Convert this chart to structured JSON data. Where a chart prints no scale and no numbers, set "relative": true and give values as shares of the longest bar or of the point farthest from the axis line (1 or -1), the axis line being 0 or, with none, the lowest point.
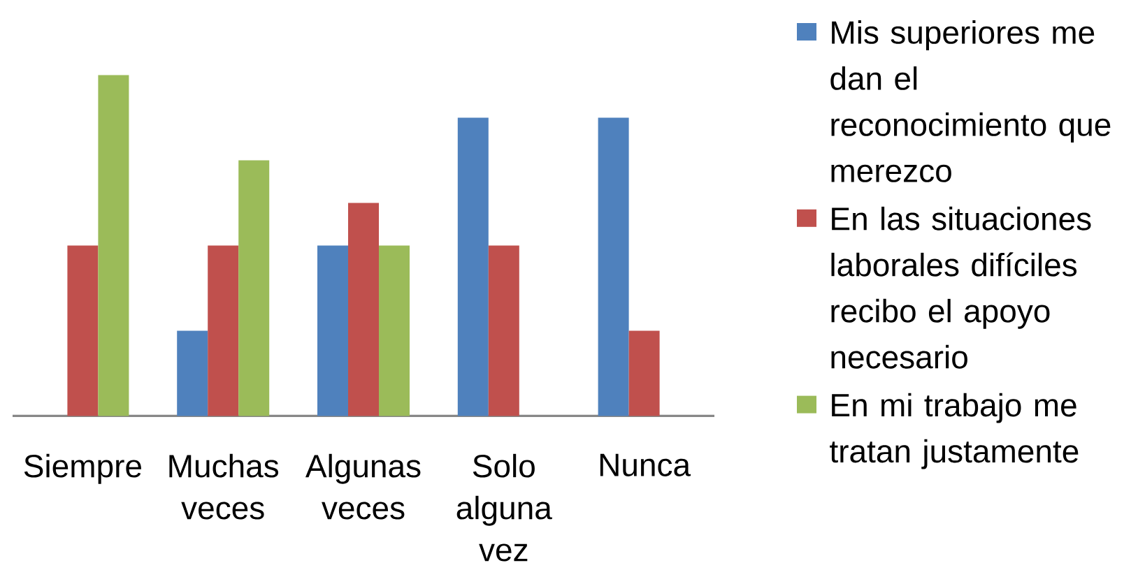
{
  "chart_data": {
    "type": "bar",
    "relative": true,
    "categories": [
      "Siempre",
      "Muchas veces",
      "Algunas veces",
      "Solo alguna vez",
      "Nunca"
    ],
    "series": [
      {
        "name": "Mis superiores me dan el reconocimiento que merezco",
        "color": "#4f81bd",
        "values": [
          0,
          0.25,
          0.5,
          0.875,
          0.875
        ]
      },
      {
        "name": "En las situaciones laborales difíciles recibo el apoyo necesario",
        "color": "#c0504d",
        "values": [
          0.5,
          0.5,
          0.625,
          0.5,
          0.25
        ]
      },
      {
        "name": "En mi trabajo me tratan justamente",
        "color": "#9bbb59",
        "values": [
          1,
          0.75,
          0.5,
          0,
          0
        ]
      }
    ],
    "legend": "right"
  }
}
